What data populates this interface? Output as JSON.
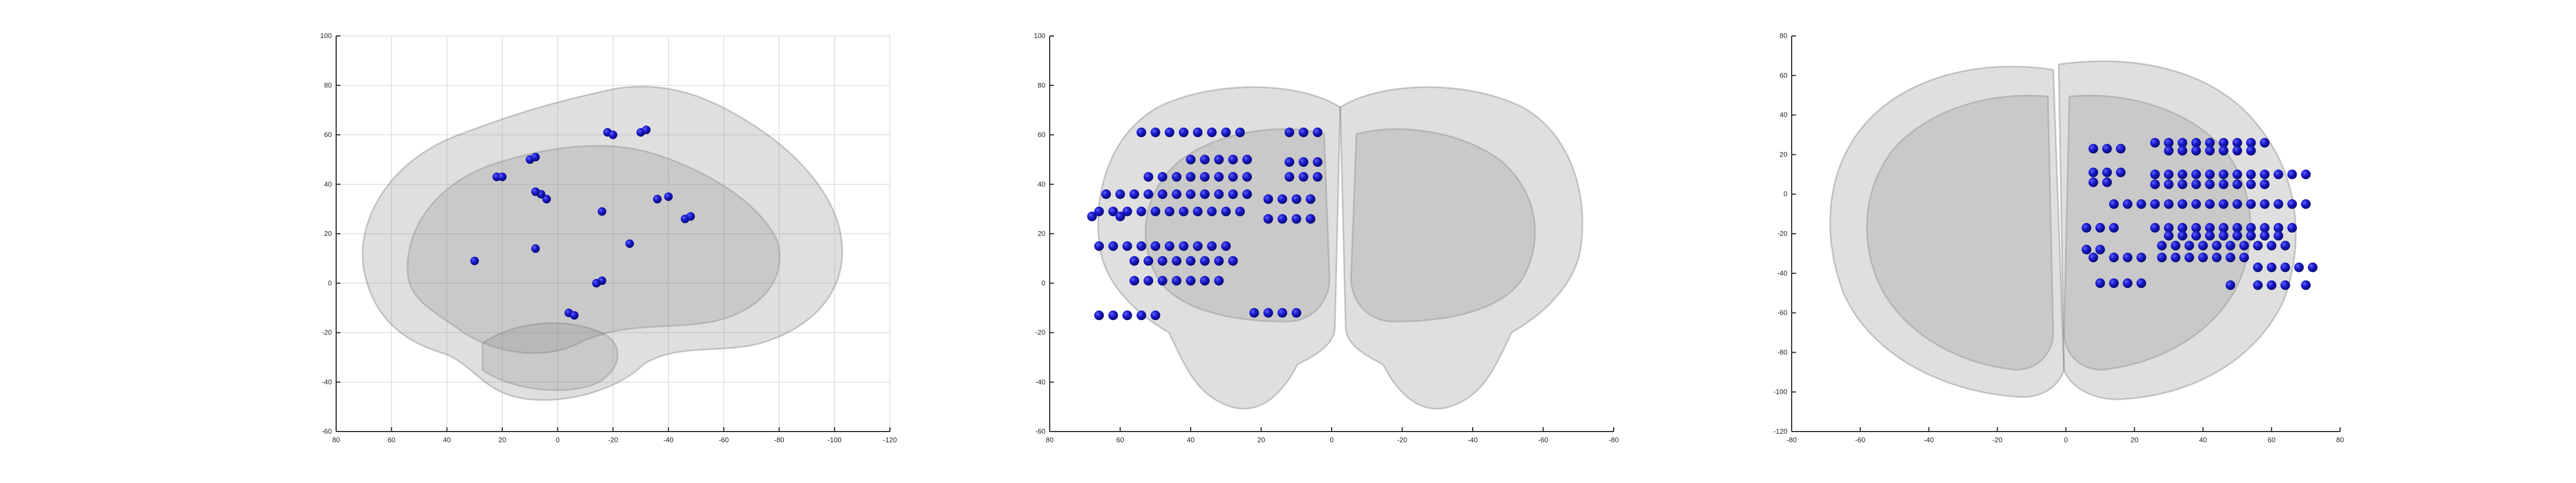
{
  "colors": {
    "electrode": "#1a1acc",
    "brain": "#8c8c8c",
    "axis": "#262626",
    "grid": "#dcdcdc"
  },
  "chart_data": [
    {
      "type": "scatter",
      "view": "sagittal",
      "xlim": [
        80,
        -120
      ],
      "ylim": [
        -60,
        100
      ],
      "x_ticks": [
        80,
        60,
        40,
        20,
        0,
        -20,
        -40,
        -60,
        -80,
        -100,
        -120
      ],
      "y_ticks": [
        100,
        80,
        60,
        40,
        20,
        0,
        -20,
        -40,
        -60
      ],
      "grid": true,
      "x_tick_labels": [
        "80",
        "60",
        "40",
        "20",
        "0",
        "-20",
        "-40",
        "-60",
        "-80",
        "-100",
        "-120"
      ],
      "y_tick_labels": [
        "100",
        "80",
        "60",
        "40",
        "20",
        "0",
        "-20",
        "-40",
        "-60"
      ],
      "series": [
        {
          "points": [
            [
              22,
              43
            ],
            [
              20,
              43
            ],
            [
              10,
              50
            ],
            [
              8,
              51
            ],
            [
              -18,
              61
            ],
            [
              -20,
              60
            ],
            [
              -30,
              61
            ],
            [
              -32,
              62
            ],
            [
              4,
              34
            ],
            [
              6,
              36
            ],
            [
              8,
              37
            ],
            [
              -16,
              29
            ],
            [
              -36,
              34
            ],
            [
              -40,
              35
            ],
            [
              -46,
              26
            ],
            [
              -48,
              27
            ],
            [
              30,
              9
            ],
            [
              8,
              14
            ],
            [
              -26,
              16
            ],
            [
              -16,
              1
            ],
            [
              -14,
              0
            ],
            [
              -4,
              -12
            ],
            [
              -6,
              -13
            ]
          ]
        }
      ]
    },
    {
      "type": "scatter",
      "view": "coronal",
      "xlim": [
        80,
        -80
      ],
      "ylim": [
        -60,
        100
      ],
      "x_ticks": [
        80,
        60,
        40,
        20,
        0,
        -20,
        -40,
        -60,
        -80
      ],
      "y_ticks": [
        100,
        80,
        60,
        40,
        20,
        0,
        -20,
        -40,
        -60
      ],
      "grid": false,
      "x_tick_labels": [
        "80",
        "60",
        "40",
        "20",
        "0",
        "-20",
        "-40",
        "-60",
        "-80"
      ],
      "y_tick_labels": [
        "100",
        "80",
        "60",
        "40",
        "20",
        "0",
        "-20",
        "-40",
        "-60"
      ],
      "series": [
        {
          "points": [
            [
              54,
              61
            ],
            [
              50,
              61
            ],
            [
              46,
              61
            ],
            [
              42,
              61
            ],
            [
              38,
              61
            ],
            [
              34,
              61
            ],
            [
              30,
              61
            ],
            [
              26,
              61
            ],
            [
              12,
              61
            ],
            [
              8,
              61
            ],
            [
              4,
              61
            ],
            [
              40,
              50
            ],
            [
              36,
              50
            ],
            [
              32,
              50
            ],
            [
              28,
              50
            ],
            [
              24,
              50
            ],
            [
              12,
              49
            ],
            [
              8,
              49
            ],
            [
              4,
              49
            ],
            [
              52,
              43
            ],
            [
              48,
              43
            ],
            [
              44,
              43
            ],
            [
              40,
              43
            ],
            [
              36,
              43
            ],
            [
              32,
              43
            ],
            [
              28,
              43
            ],
            [
              24,
              43
            ],
            [
              12,
              43
            ],
            [
              8,
              43
            ],
            [
              4,
              43
            ],
            [
              64,
              36
            ],
            [
              60,
              36
            ],
            [
              56,
              36
            ],
            [
              52,
              36
            ],
            [
              48,
              36
            ],
            [
              44,
              36
            ],
            [
              40,
              36
            ],
            [
              36,
              36
            ],
            [
              32,
              36
            ],
            [
              28,
              36
            ],
            [
              24,
              36
            ],
            [
              18,
              34
            ],
            [
              14,
              34
            ],
            [
              10,
              34
            ],
            [
              6,
              34
            ],
            [
              66,
              29
            ],
            [
              62,
              29
            ],
            [
              58,
              29
            ],
            [
              54,
              29
            ],
            [
              50,
              29
            ],
            [
              46,
              29
            ],
            [
              42,
              29
            ],
            [
              38,
              29
            ],
            [
              34,
              29
            ],
            [
              30,
              29
            ],
            [
              26,
              29
            ],
            [
              68,
              27
            ],
            [
              60,
              27
            ],
            [
              18,
              26
            ],
            [
              14,
              26
            ],
            [
              10,
              26
            ],
            [
              6,
              26
            ],
            [
              66,
              15
            ],
            [
              62,
              15
            ],
            [
              58,
              15
            ],
            [
              54,
              15
            ],
            [
              50,
              15
            ],
            [
              46,
              15
            ],
            [
              42,
              15
            ],
            [
              38,
              15
            ],
            [
              34,
              15
            ],
            [
              30,
              15
            ],
            [
              56,
              9
            ],
            [
              52,
              9
            ],
            [
              48,
              9
            ],
            [
              44,
              9
            ],
            [
              40,
              9
            ],
            [
              36,
              9
            ],
            [
              32,
              9
            ],
            [
              28,
              9
            ],
            [
              56,
              1
            ],
            [
              52,
              1
            ],
            [
              48,
              1
            ],
            [
              44,
              1
            ],
            [
              40,
              1
            ],
            [
              36,
              1
            ],
            [
              32,
              1
            ],
            [
              66,
              -13
            ],
            [
              62,
              -13
            ],
            [
              58,
              -13
            ],
            [
              54,
              -13
            ],
            [
              50,
              -13
            ],
            [
              22,
              -12
            ],
            [
              18,
              -12
            ],
            [
              14,
              -12
            ],
            [
              10,
              -12
            ]
          ]
        }
      ]
    },
    {
      "type": "scatter",
      "view": "axial",
      "xlim": [
        -80,
        80
      ],
      "ylim": [
        -120,
        80
      ],
      "x_ticks": [
        -80,
        -60,
        -40,
        -20,
        0,
        20,
        40,
        60,
        80
      ],
      "y_ticks": [
        80,
        60,
        40,
        20,
        0,
        -20,
        -40,
        -60,
        -80,
        -100,
        -120
      ],
      "grid": false,
      "x_tick_labels": [
        "-80",
        "-60",
        "-40",
        "-20",
        "0",
        "20",
        "40",
        "60",
        "80"
      ],
      "y_tick_labels": [
        "80",
        "60",
        "40",
        "20",
        "0",
        "-20",
        "-40",
        "-60",
        "-80",
        "-100",
        "-120"
      ],
      "series": [
        {
          "points": [
            [
              8,
              23
            ],
            [
              12,
              23
            ],
            [
              16,
              23
            ],
            [
              8,
              11
            ],
            [
              12,
              11
            ],
            [
              16,
              11
            ],
            [
              8,
              6
            ],
            [
              12,
              6
            ],
            [
              26,
              26
            ],
            [
              30,
              26
            ],
            [
              34,
              26
            ],
            [
              38,
              26
            ],
            [
              42,
              26
            ],
            [
              46,
              26
            ],
            [
              50,
              26
            ],
            [
              54,
              26
            ],
            [
              58,
              26
            ],
            [
              30,
              22
            ],
            [
              34,
              22
            ],
            [
              38,
              22
            ],
            [
              42,
              22
            ],
            [
              46,
              22
            ],
            [
              50,
              22
            ],
            [
              54,
              22
            ],
            [
              26,
              10
            ],
            [
              30,
              10
            ],
            [
              34,
              10
            ],
            [
              38,
              10
            ],
            [
              42,
              10
            ],
            [
              46,
              10
            ],
            [
              50,
              10
            ],
            [
              54,
              10
            ],
            [
              58,
              10
            ],
            [
              62,
              10
            ],
            [
              66,
              10
            ],
            [
              70,
              10
            ],
            [
              26,
              5
            ],
            [
              30,
              5
            ],
            [
              34,
              5
            ],
            [
              38,
              5
            ],
            [
              42,
              5
            ],
            [
              46,
              5
            ],
            [
              50,
              5
            ],
            [
              54,
              5
            ],
            [
              58,
              5
            ],
            [
              14,
              -5
            ],
            [
              18,
              -5
            ],
            [
              22,
              -5
            ],
            [
              26,
              -5
            ],
            [
              30,
              -5
            ],
            [
              34,
              -5
            ],
            [
              38,
              -5
            ],
            [
              42,
              -5
            ],
            [
              46,
              -5
            ],
            [
              50,
              -5
            ],
            [
              54,
              -5
            ],
            [
              58,
              -5
            ],
            [
              62,
              -5
            ],
            [
              66,
              -5
            ],
            [
              70,
              -5
            ],
            [
              6,
              -17
            ],
            [
              10,
              -17
            ],
            [
              14,
              -17
            ],
            [
              26,
              -17
            ],
            [
              30,
              -17
            ],
            [
              34,
              -17
            ],
            [
              38,
              -17
            ],
            [
              42,
              -17
            ],
            [
              46,
              -17
            ],
            [
              50,
              -17
            ],
            [
              54,
              -17
            ],
            [
              58,
              -17
            ],
            [
              62,
              -17
            ],
            [
              66,
              -17
            ],
            [
              30,
              -21
            ],
            [
              34,
              -21
            ],
            [
              38,
              -21
            ],
            [
              42,
              -21
            ],
            [
              46,
              -21
            ],
            [
              50,
              -21
            ],
            [
              54,
              -21
            ],
            [
              58,
              -21
            ],
            [
              62,
              -21
            ],
            [
              6,
              -28
            ],
            [
              10,
              -28
            ],
            [
              28,
              -26
            ],
            [
              32,
              -26
            ],
            [
              36,
              -26
            ],
            [
              40,
              -26
            ],
            [
              44,
              -26
            ],
            [
              48,
              -26
            ],
            [
              52,
              -26
            ],
            [
              56,
              -26
            ],
            [
              60,
              -26
            ],
            [
              64,
              -26
            ],
            [
              8,
              -32
            ],
            [
              14,
              -32
            ],
            [
              18,
              -32
            ],
            [
              22,
              -32
            ],
            [
              28,
              -32
            ],
            [
              32,
              -32
            ],
            [
              36,
              -32
            ],
            [
              40,
              -32
            ],
            [
              44,
              -32
            ],
            [
              48,
              -32
            ],
            [
              52,
              -32
            ],
            [
              56,
              -37
            ],
            [
              60,
              -37
            ],
            [
              64,
              -37
            ],
            [
              68,
              -37
            ],
            [
              72,
              -37
            ],
            [
              10,
              -45
            ],
            [
              14,
              -45
            ],
            [
              18,
              -45
            ],
            [
              22,
              -45
            ],
            [
              48,
              -46
            ],
            [
              56,
              -46
            ],
            [
              60,
              -46
            ],
            [
              64,
              -46
            ],
            [
              70,
              -46
            ]
          ]
        }
      ]
    }
  ]
}
